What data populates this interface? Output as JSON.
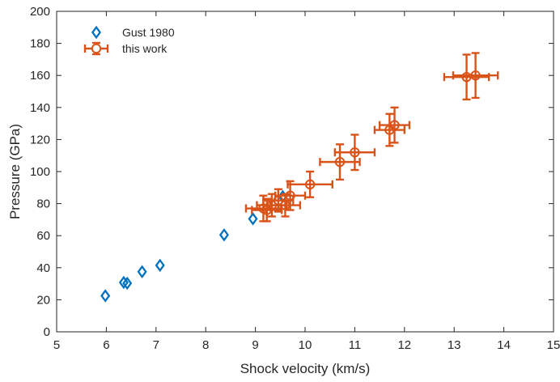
{
  "chart_data": {
    "type": "scatter",
    "title": "",
    "xlabel": "Shock velocity (km/s)",
    "ylabel": "Pressure (GPa)",
    "xlim": [
      5,
      15
    ],
    "ylim": [
      0,
      200
    ],
    "xticks": [
      5,
      6,
      7,
      8,
      9,
      10,
      11,
      12,
      13,
      14,
      15
    ],
    "yticks": [
      0,
      20,
      40,
      60,
      80,
      100,
      120,
      140,
      160,
      180,
      200
    ],
    "grid": false,
    "legend_position": "top-left",
    "series": [
      {
        "name": "Gust 1980",
        "marker": "diamond",
        "color": "#0072BD",
        "x": [
          5.98,
          6.35,
          6.42,
          6.72,
          7.08,
          8.37,
          8.95,
          9.55
        ],
        "y": [
          22.5,
          30.8,
          30.3,
          37.5,
          41.5,
          60.5,
          70.5,
          84.5
        ]
      },
      {
        "name": "this work",
        "marker": "circle",
        "color": "#D95319",
        "error_bars": true,
        "x": [
          9.16,
          9.23,
          9.33,
          9.46,
          9.6,
          9.7,
          10.1,
          10.7,
          11.0,
          11.7,
          11.8,
          13.25,
          13.43
        ],
        "y": [
          77,
          76,
          79,
          82,
          79,
          85,
          92,
          106,
          112,
          126,
          129,
          159,
          160
        ],
        "x_error": [
          0.35,
          0.3,
          0.3,
          0.3,
          0.3,
          0.3,
          0.45,
          0.4,
          0.4,
          0.3,
          0.3,
          0.45,
          0.45
        ],
        "y_error": [
          8,
          7,
          7,
          7,
          7,
          9,
          8,
          11,
          11,
          10,
          11,
          14,
          14
        ]
      }
    ]
  }
}
